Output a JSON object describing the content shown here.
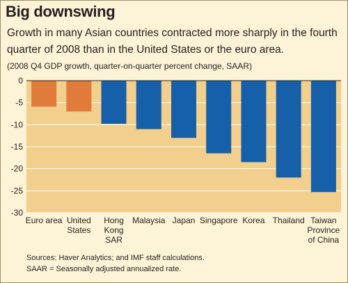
{
  "title": "Big downswing",
  "subtitle": "Growth in many Asian countries contracted more sharply in the fourth quarter of 2008 than in the United States or the euro area.",
  "unit_note": "(2008 Q4 GDP growth, quarter-on-quarter percent change, SAAR)",
  "footnotes": {
    "sources": "Sources: Haver Analytics; and IMF staff calculations.",
    "saar": "SAAR = Seasonally adjusted annualized rate."
  },
  "colors": {
    "background": "#fdf3d6",
    "plot_area": "#f2cf8c",
    "highlight_bar": "#e07b39",
    "asia_bar": "#1560a8"
  },
  "chart_data": {
    "type": "bar",
    "categories": [
      "Euro area",
      "United States",
      "Hong Kong SAR",
      "Malaysia",
      "Japan",
      "Singapore",
      "Korea",
      "Thailand",
      "Taiwan Province of China"
    ],
    "category_lines": [
      [
        "Euro area"
      ],
      [
        "United",
        "States"
      ],
      [
        "Hong",
        "Kong",
        "SAR"
      ],
      [
        "Malaysia"
      ],
      [
        "Japan"
      ],
      [
        "Singapore"
      ],
      [
        "Korea"
      ],
      [
        "Thailand"
      ],
      [
        "Taiwan",
        "Province",
        "of China"
      ]
    ],
    "values": [
      -5.9,
      -7.0,
      -9.8,
      -11.0,
      -13.0,
      -16.5,
      -18.5,
      -22.0,
      -25.3
    ],
    "bar_colors": [
      "#e07b39",
      "#e07b39",
      "#1560a8",
      "#1560a8",
      "#1560a8",
      "#1560a8",
      "#1560a8",
      "#1560a8",
      "#1560a8"
    ],
    "ylim": [
      -30,
      0
    ],
    "yticks": [
      0,
      -5,
      -10,
      -15,
      -20,
      -25,
      -30
    ],
    "grid": true
  }
}
